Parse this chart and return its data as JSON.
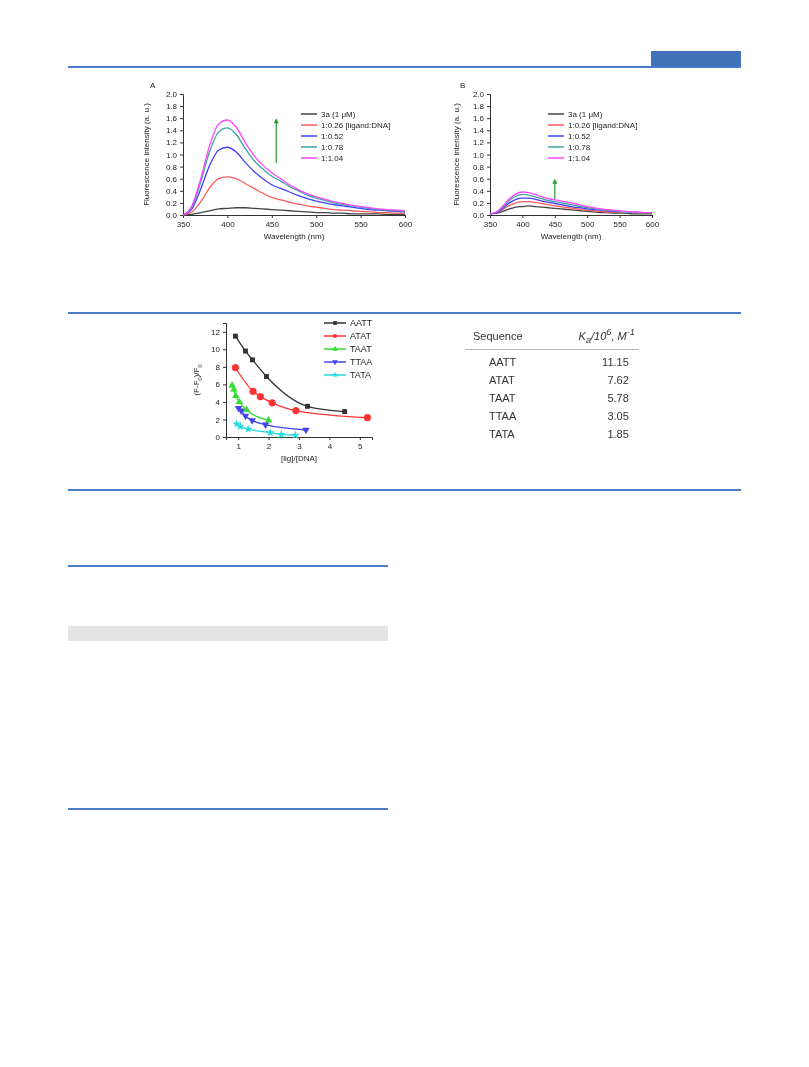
{
  "chart_data": [
    {
      "type": "line",
      "title": "A",
      "xlabel": "Wavelength (nm)",
      "ylabel": "Fluorescence intensity (a. u.)",
      "legend": "top right",
      "x": [
        350,
        360,
        370,
        380,
        390,
        400,
        410,
        420,
        430,
        440,
        450,
        460,
        470,
        480,
        490,
        500,
        510,
        520,
        530,
        540,
        550,
        560,
        570,
        580,
        590,
        600
      ],
      "xlim": [
        350,
        600
      ],
      "xticks": [
        350,
        400,
        450,
        500,
        550,
        600
      ],
      "ylim": [
        0,
        2
      ],
      "yticks": [
        {
          "value": 0,
          "label": "0.0"
        },
        0.2,
        0.4,
        0.6,
        0.8,
        {
          "value": 1,
          "label": "1.0"
        },
        1.2,
        1.4,
        1.6,
        1.8,
        {
          "value": 2,
          "label": "2.0"
        }
      ],
      "series": [
        {
          "name": "3a (1 μM)",
          "color": "#444444",
          "values": [
            0,
            0.01,
            0.04,
            0.07,
            0.1,
            0.11,
            0.12,
            0.12,
            0.11,
            0.1,
            0.09,
            0.08,
            0.07,
            0.06,
            0.05,
            0.04,
            0.04,
            0.03,
            0.03,
            0.02,
            0.02,
            0.02,
            0.02,
            0.01,
            0.01,
            0.01
          ]
        },
        {
          "name": "1:0.26 [ligand:DNA]",
          "color": "#ff5a5a",
          "values": [
            0,
            0.05,
            0.22,
            0.45,
            0.6,
            0.63,
            0.6,
            0.52,
            0.44,
            0.36,
            0.29,
            0.25,
            0.21,
            0.18,
            0.15,
            0.13,
            0.11,
            0.09,
            0.08,
            0.07,
            0.06,
            0.05,
            0.04,
            0.04,
            0.03,
            0.03
          ]
        },
        {
          "name": "1:0.52",
          "color": "#4040ff",
          "values": [
            0,
            0.1,
            0.43,
            0.82,
            1.07,
            1.12,
            1.04,
            0.87,
            0.72,
            0.6,
            0.5,
            0.44,
            0.38,
            0.32,
            0.27,
            0.23,
            0.2,
            0.17,
            0.15,
            0.13,
            0.11,
            0.09,
            0.08,
            0.07,
            0.06,
            0.05
          ]
        },
        {
          "name": "1:0.78",
          "color": "#3aa3a0",
          "values": [
            0,
            0.13,
            0.55,
            1.05,
            1.37,
            1.44,
            1.33,
            1.1,
            0.9,
            0.76,
            0.64,
            0.56,
            0.47,
            0.4,
            0.33,
            0.28,
            0.24,
            0.2,
            0.17,
            0.15,
            0.13,
            0.11,
            0.09,
            0.08,
            0.07,
            0.06
          ]
        },
        {
          "name": "1:1.04",
          "color": "#ff44ff",
          "values": [
            0,
            0.15,
            0.6,
            1.15,
            1.5,
            1.57,
            1.45,
            1.2,
            0.98,
            0.82,
            0.7,
            0.6,
            0.5,
            0.42,
            0.35,
            0.3,
            0.26,
            0.22,
            0.19,
            0.16,
            0.14,
            0.12,
            0.1,
            0.09,
            0.08,
            0.07
          ]
        }
      ]
    },
    {
      "type": "line",
      "title": "B",
      "xlabel": "Wavelength (nm)",
      "ylabel": "Fluorescence intensity (a. u.)",
      "legend": "top right",
      "x": [
        350,
        360,
        370,
        380,
        390,
        400,
        410,
        420,
        430,
        440,
        450,
        460,
        470,
        480,
        490,
        500,
        510,
        520,
        530,
        540,
        550,
        560,
        570,
        580,
        590,
        600
      ],
      "xlim": [
        350,
        600
      ],
      "xticks": [
        350,
        400,
        450,
        500,
        550,
        600
      ],
      "ylim": [
        0,
        2
      ],
      "yticks": [
        {
          "value": 0,
          "label": "0.0"
        },
        0.2,
        0.4,
        0.6,
        0.8,
        {
          "value": 1,
          "label": "1.0"
        },
        1.2,
        1.4,
        1.6,
        1.8,
        {
          "value": 2,
          "label": "2.0"
        }
      ],
      "series": [
        {
          "name": "3a (1 μM)",
          "color": "#444444",
          "values": [
            0.02,
            0.03,
            0.06,
            0.1,
            0.13,
            0.14,
            0.15,
            0.14,
            0.13,
            0.12,
            0.11,
            0.1,
            0.09,
            0.08,
            0.07,
            0.06,
            0.05,
            0.04,
            0.04,
            0.03,
            0.03,
            0.03,
            0.02,
            0.02,
            0.02,
            0.02
          ]
        },
        {
          "name": "1:0.26 [ligand:DNA]",
          "color": "#ff5a5a",
          "values": [
            0.02,
            0.04,
            0.09,
            0.16,
            0.2,
            0.22,
            0.22,
            0.21,
            0.19,
            0.17,
            0.15,
            0.14,
            0.12,
            0.11,
            0.09,
            0.08,
            0.07,
            0.06,
            0.05,
            0.05,
            0.04,
            null,
            null,
            null,
            null,
            null
          ]
        },
        {
          "name": "1:0.52",
          "color": "#4040ff",
          "values": [
            0.02,
            0.04,
            0.11,
            0.2,
            0.26,
            0.28,
            0.28,
            0.26,
            0.23,
            0.21,
            0.19,
            0.17,
            0.15,
            0.13,
            0.12,
            0.1,
            0.09,
            0.08,
            0.07,
            0.06,
            0.05,
            null,
            null,
            null,
            null,
            null
          ]
        },
        {
          "name": "1:0.78",
          "color": "#3aa3a0",
          "values": [
            0.02,
            0.05,
            0.13,
            0.24,
            0.31,
            0.34,
            0.33,
            0.3,
            0.27,
            0.24,
            0.22,
            0.2,
            0.18,
            0.16,
            0.14,
            0.12,
            0.11,
            0.09,
            0.08,
            0.07,
            0.06,
            0.05,
            0.05,
            0.04,
            null,
            null
          ]
        },
        {
          "name": "1:1.04",
          "color": "#ff44ff",
          "values": [
            0.02,
            0.05,
            0.15,
            0.27,
            0.35,
            0.38,
            0.37,
            0.34,
            0.3,
            0.27,
            0.25,
            0.23,
            0.21,
            0.19,
            0.16,
            0.14,
            0.12,
            0.1,
            0.09,
            0.08,
            0.07,
            0.06,
            0.05,
            0.05,
            0.04,
            0.04
          ]
        }
      ]
    },
    {
      "type": "line",
      "xlabel": "[lig]/[DNA]",
      "ylabel": "(F-F$_{0}$)/F$_{0}$",
      "legend": "top right",
      "xlim": [
        0.6,
        5.4
      ],
      "xticks": [
        1,
        2,
        3,
        4,
        5
      ],
      "ylim": [
        0,
        13
      ],
      "yticks": [
        0,
        2,
        4,
        6,
        8,
        10,
        12
      ],
      "series": [
        {
          "name": "AATT",
          "color": "#333333",
          "marker": "square",
          "x": [
            0.91,
            1.24,
            1.47,
            1.93,
            3.28,
            4.5
          ],
          "values": [
            11.5,
            9.8,
            8.8,
            6.9,
            3.5,
            2.9
          ]
        },
        {
          "name": "ATAT",
          "color": "#ff3333",
          "marker": "circle",
          "x": [
            0.91,
            1.49,
            1.73,
            2.12,
            2.9,
            5.25
          ],
          "values": [
            7.9,
            5.2,
            4.6,
            3.9,
            3.0,
            2.2
          ]
        },
        {
          "name": "TAAT",
          "color": "#33dd33",
          "marker": "triangle",
          "x": [
            0.8,
            0.86,
            0.92,
            1.04,
            1.28,
            2.0
          ],
          "values": [
            5.9,
            5.4,
            4.7,
            4.0,
            3.1,
            1.9
          ]
        },
        {
          "name": "TTAA",
          "color": "#4444ee",
          "marker": "triangle-down",
          "x": [
            1.01,
            1.1,
            1.24,
            1.46,
            1.9,
            3.23
          ],
          "values": [
            3.3,
            3.0,
            2.4,
            1.9,
            1.4,
            0.8
          ]
        },
        {
          "name": "TATA",
          "color": "#22dddd",
          "marker": "star",
          "x": [
            0.95,
            1.07,
            1.33,
            2.05,
            2.42,
            2.88
          ],
          "values": [
            1.5,
            1.2,
            0.9,
            0.5,
            0.3,
            0.2
          ]
        }
      ]
    },
    {
      "type": "other",
      "xlabel": "Sequence",
      "ylabel": "K$_{a}$/10$^{6}$, M$^{-1}$",
      "categories": [
        "AATT",
        "ATAT",
        "TAAT",
        "TTAA",
        "TATA"
      ],
      "value_labels": [
        "11.15",
        "7.62",
        "5.78",
        "3.05",
        "1.85"
      ]
    }
  ]
}
